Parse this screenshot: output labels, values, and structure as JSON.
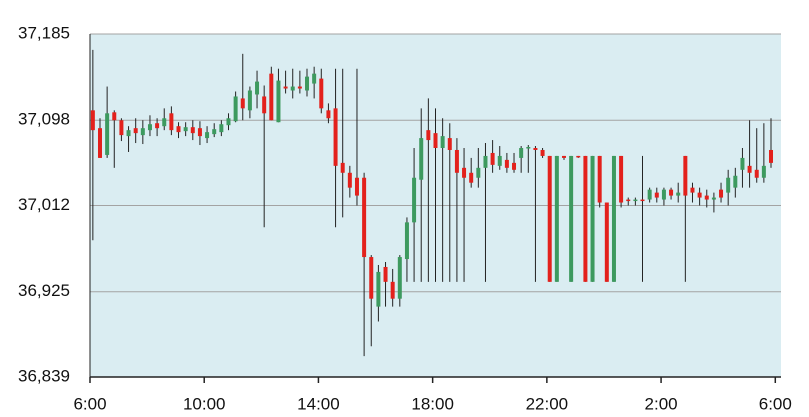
{
  "chart_data": {
    "type": "candlestick",
    "x": [
      0.1,
      0.35,
      0.6,
      0.85,
      1.1,
      1.35,
      1.6,
      1.85,
      2.1,
      2.35,
      2.6,
      2.85,
      3.1,
      3.35,
      3.6,
      3.85,
      4.1,
      4.35,
      4.6,
      4.85,
      5.1,
      5.35,
      5.6,
      5.85,
      6.1,
      6.35,
      6.6,
      6.85,
      7.1,
      7.35,
      7.6,
      7.85,
      8.1,
      8.35,
      8.6,
      8.85,
      9.1,
      9.35,
      9.6,
      9.85,
      10.1,
      10.35,
      10.6,
      10.85,
      11.1,
      11.35,
      11.6,
      11.85,
      12.1,
      12.35,
      12.6,
      12.85,
      13.1,
      13.35,
      13.6,
      13.85,
      14.1,
      14.35,
      14.6,
      14.85,
      15.1,
      15.35,
      15.6,
      15.85,
      16.1,
      16.35,
      16.6,
      16.85,
      17.1,
      17.35,
      17.6,
      17.85,
      18.1,
      18.35,
      18.6,
      18.85,
      19.1,
      19.35,
      19.6,
      19.85,
      20.1,
      20.35,
      20.6,
      20.85,
      21.1,
      21.35,
      21.6,
      21.85,
      22.1,
      22.35,
      22.6,
      22.85,
      23.1,
      23.35,
      23.6,
      23.85
    ],
    "open": [
      37108,
      37090,
      37063,
      37106,
      37098,
      37082,
      37090,
      37083,
      37088,
      37095,
      37092,
      37105,
      37092,
      37087,
      37091,
      37090,
      37080,
      37084,
      37086,
      37093,
      37097,
      37120,
      37108,
      37124,
      37122,
      37145,
      37096,
      37132,
      37128,
      37132,
      37128,
      37135,
      37140,
      37108,
      37110,
      37055,
      37045,
      37040,
      37040,
      36960,
      36910,
      36950,
      36935,
      36918,
      36958,
      36995,
      37038,
      37088,
      37085,
      37070,
      37080,
      37068,
      37050,
      37045,
      37040,
      37050,
      37065,
      37052,
      37058,
      37055,
      37060,
      37070,
      37070,
      37068,
      37062,
      36935,
      37062,
      36935,
      37062,
      37062,
      36935,
      37062,
      37015,
      36935,
      37062,
      37018,
      37017,
      37018,
      37018,
      37025,
      37018,
      37028,
      37022,
      37062,
      37030,
      37025,
      37022,
      37018,
      37028,
      37025,
      37030,
      37048,
      37052,
      37048,
      37040,
      37068
    ],
    "high": [
      37169,
      37100,
      37132,
      37108,
      37100,
      37092,
      37100,
      37098,
      37103,
      37100,
      37110,
      37112,
      37096,
      37096,
      37098,
      37097,
      37092,
      37095,
      37098,
      37105,
      37127,
      37165,
      37132,
      37148,
      37133,
      37152,
      37150,
      37148,
      37150,
      37148,
      37150,
      37152,
      37150,
      37115,
      37150,
      37150,
      37052,
      37150,
      37045,
      36962,
      36952,
      36955,
      36948,
      36962,
      37000,
      37070,
      37110,
      37120,
      37110,
      37100,
      37095,
      37080,
      37070,
      37060,
      37070,
      37075,
      37078,
      37072,
      37065,
      37065,
      37072,
      37073,
      37072,
      37070,
      37062,
      37062,
      37062,
      37062,
      37062,
      37062,
      37062,
      37062,
      37015,
      37062,
      37062,
      37020,
      37020,
      37062,
      37030,
      37030,
      37030,
      37030,
      37035,
      37062,
      37035,
      37030,
      37028,
      37025,
      37035,
      37048,
      37050,
      37070,
      37098,
      37090,
      37095,
      37100
    ],
    "low": [
      36977,
      37060,
      37060,
      37050,
      37077,
      37066,
      37075,
      37074,
      37082,
      37082,
      37088,
      37083,
      37080,
      37082,
      37078,
      37073,
      37075,
      37081,
      37082,
      37088,
      37096,
      37098,
      37100,
      37110,
      36990,
      37098,
      37096,
      37125,
      37120,
      37125,
      37122,
      37120,
      37105,
      37095,
      36990,
      37000,
      37020,
      37012,
      36860,
      36870,
      36895,
      36910,
      36910,
      36910,
      36935,
      36935,
      36935,
      36935,
      36935,
      36935,
      36935,
      36935,
      36935,
      37030,
      37030,
      36935,
      37045,
      37048,
      37045,
      37045,
      37045,
      37045,
      36935,
      37060,
      36935,
      36935,
      37058,
      36935,
      37060,
      36935,
      36935,
      37010,
      36935,
      36935,
      37010,
      37012,
      37012,
      36935,
      37015,
      37015,
      37012,
      37018,
      37015,
      36935,
      37015,
      37012,
      37010,
      37005,
      37015,
      37012,
      37020,
      37030,
      37030,
      37035,
      37035,
      37050
    ],
    "close": [
      37088,
      37060,
      37105,
      37098,
      37083,
      37088,
      37085,
      37090,
      37094,
      37090,
      37100,
      37088,
      37086,
      37091,
      37085,
      37082,
      37086,
      37089,
      37094,
      37100,
      37122,
      37110,
      37128,
      37137,
      37105,
      37098,
      37138,
      37130,
      37132,
      37130,
      37142,
      37145,
      37110,
      37100,
      37052,
      37045,
      37030,
      37022,
      36960,
      36918,
      36945,
      36935,
      36918,
      36960,
      36995,
      37040,
      37080,
      37078,
      37070,
      37082,
      37068,
      37045,
      37040,
      37035,
      37050,
      37062,
      37053,
      37062,
      37050,
      37048,
      37070,
      37071,
      37068,
      37062,
      36935,
      37062,
      37060,
      37062,
      37061,
      36935,
      37062,
      37015,
      36935,
      37062,
      37015,
      37017,
      37018,
      37017,
      37028,
      37020,
      37028,
      37022,
      37025,
      37022,
      37025,
      37020,
      37018,
      37020,
      37020,
      37040,
      37042,
      37060,
      37045,
      37040,
      37052,
      37055
    ],
    "up_color": "#3d9a5f",
    "down_color": "#e3211c",
    "xlim": [
      0,
      24.2
    ],
    "xticks": [
      {
        "value": 0,
        "label": "6:00"
      },
      {
        "value": 4,
        "label": "10:00"
      },
      {
        "value": 8,
        "label": "14:00"
      },
      {
        "value": 12,
        "label": "18:00"
      },
      {
        "value": 16,
        "label": "22:00"
      },
      {
        "value": 20,
        "label": "2:00"
      },
      {
        "value": 24,
        "label": "6:00"
      }
    ],
    "ylim": [
      36839,
      37185
    ],
    "yticks": [
      {
        "value": 36839,
        "label": "36,839"
      },
      {
        "value": 36925,
        "label": "36,925"
      },
      {
        "value": 37012,
        "label": "37,012"
      },
      {
        "value": 37098,
        "label": "37,098"
      },
      {
        "value": 37185,
        "label": "37,185"
      }
    ],
    "grid": true
  }
}
